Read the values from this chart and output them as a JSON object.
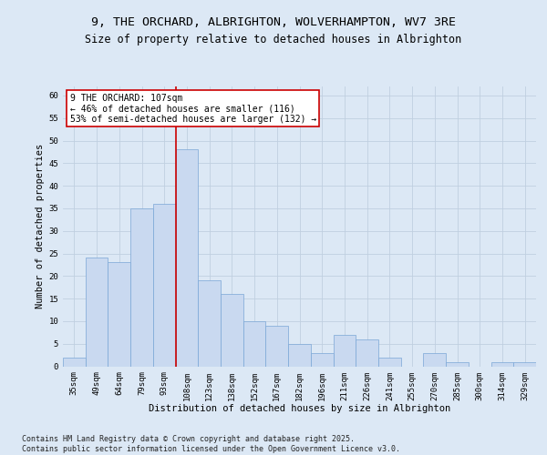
{
  "title_line1": "9, THE ORCHARD, ALBRIGHTON, WOLVERHAMPTON, WV7 3RE",
  "title_line2": "Size of property relative to detached houses in Albrighton",
  "xlabel": "Distribution of detached houses by size in Albrighton",
  "ylabel": "Number of detached properties",
  "categories": [
    "35sqm",
    "49sqm",
    "64sqm",
    "79sqm",
    "93sqm",
    "108sqm",
    "123sqm",
    "138sqm",
    "152sqm",
    "167sqm",
    "182sqm",
    "196sqm",
    "211sqm",
    "226sqm",
    "241sqm",
    "255sqm",
    "270sqm",
    "285sqm",
    "300sqm",
    "314sqm",
    "329sqm"
  ],
  "values": [
    2,
    24,
    23,
    35,
    36,
    48,
    19,
    16,
    10,
    9,
    5,
    3,
    7,
    6,
    2,
    0,
    3,
    1,
    0,
    1,
    1
  ],
  "bar_color": "#c9d9f0",
  "bar_edge_color": "#7aa6d6",
  "red_line_index": 5,
  "annotation_line1": "9 THE ORCHARD: 107sqm",
  "annotation_line2": "← 46% of detached houses are smaller (116)",
  "annotation_line3": "53% of semi-detached houses are larger (132) →",
  "annotation_box_color": "#ffffff",
  "annotation_border_color": "#cc0000",
  "red_line_color": "#cc0000",
  "grid_color": "#c0cfe0",
  "background_color": "#dce8f5",
  "plot_bg_color": "#dce8f5",
  "ylim": [
    0,
    62
  ],
  "yticks": [
    0,
    5,
    10,
    15,
    20,
    25,
    30,
    35,
    40,
    45,
    50,
    55,
    60
  ],
  "footer_text": "Contains HM Land Registry data © Crown copyright and database right 2025.\nContains public sector information licensed under the Open Government Licence v3.0.",
  "title_fontsize": 9.5,
  "subtitle_fontsize": 8.5,
  "axis_label_fontsize": 7.5,
  "tick_fontsize": 6.5,
  "annotation_fontsize": 7,
  "footer_fontsize": 6
}
